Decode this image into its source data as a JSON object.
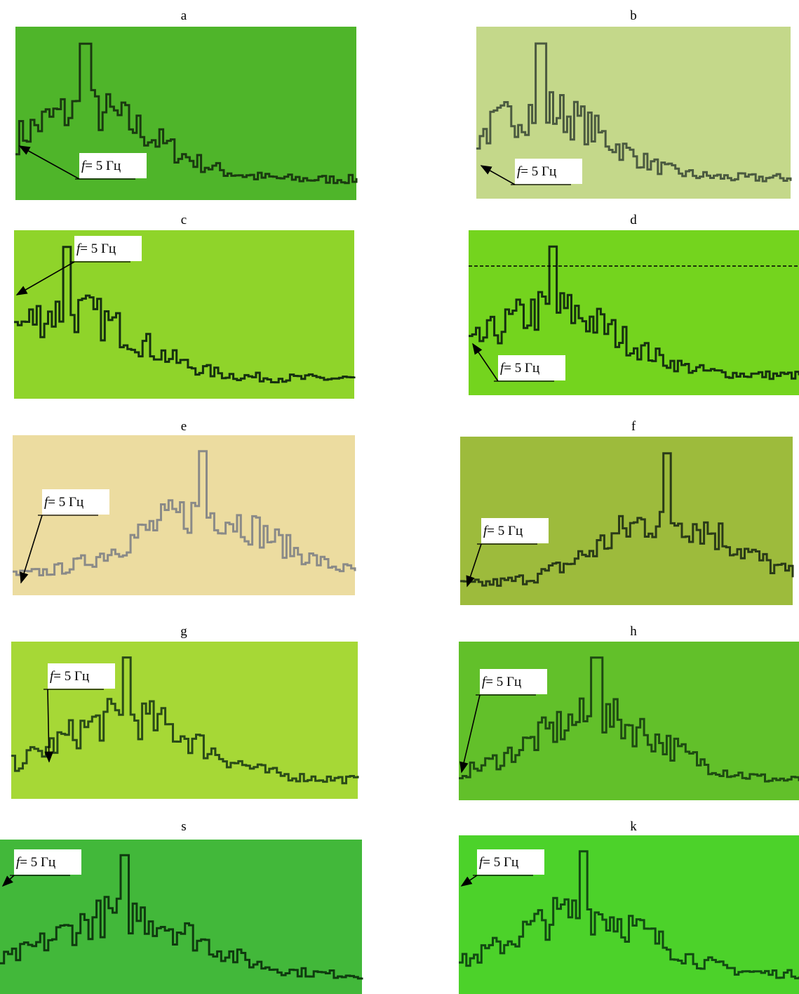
{
  "panels": [
    {
      "label": "a",
      "symbol": "f",
      "annotation": "= 5 Гц"
    },
    {
      "label": "b",
      "symbol": "f",
      "annotation": "= 5 Гц"
    },
    {
      "label": "c",
      "symbol": "f",
      "annotation": "= 5 Гц"
    },
    {
      "label": "d",
      "symbol": "f",
      "annotation": "= 5 Гц"
    },
    {
      "label": "e",
      "symbol": "f",
      "annotation": "= 5 Гц"
    },
    {
      "label": "f",
      "symbol": "f",
      "annotation": "= 5 Гц"
    },
    {
      "label": "g",
      "symbol": "f",
      "annotation": "= 5 Гц"
    },
    {
      "label": "h",
      "symbol": "f",
      "annotation": "= 5 Гц"
    },
    {
      "label": "s",
      "symbol": "f",
      "annotation": "= 5 Гц"
    },
    {
      "label": "k",
      "symbol": "f",
      "annotation": "= 5 Гц"
    }
  ]
}
